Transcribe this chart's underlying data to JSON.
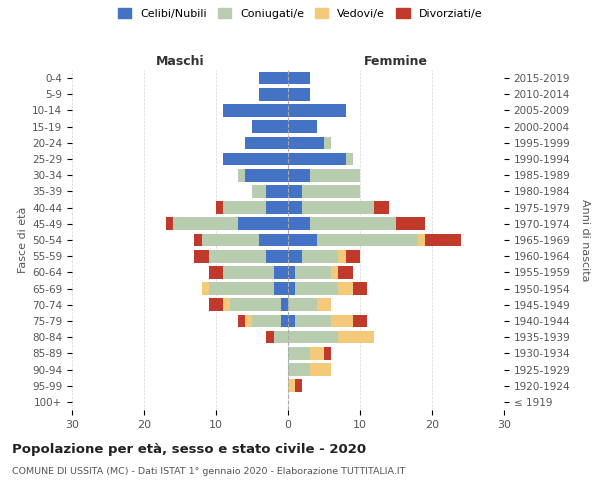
{
  "age_groups": [
    "100+",
    "95-99",
    "90-94",
    "85-89",
    "80-84",
    "75-79",
    "70-74",
    "65-69",
    "60-64",
    "55-59",
    "50-54",
    "45-49",
    "40-44",
    "35-39",
    "30-34",
    "25-29",
    "20-24",
    "15-19",
    "10-14",
    "5-9",
    "0-4"
  ],
  "birth_years": [
    "≤ 1919",
    "1920-1924",
    "1925-1929",
    "1930-1934",
    "1935-1939",
    "1940-1944",
    "1945-1949",
    "1950-1954",
    "1955-1959",
    "1960-1964",
    "1965-1969",
    "1970-1974",
    "1975-1979",
    "1980-1984",
    "1985-1989",
    "1990-1994",
    "1995-1999",
    "2000-2004",
    "2005-2009",
    "2010-2014",
    "2015-2019"
  ],
  "male": {
    "celibi": [
      0,
      0,
      0,
      0,
      0,
      1,
      1,
      2,
      2,
      3,
      4,
      7,
      3,
      3,
      6,
      9,
      6,
      5,
      9,
      4,
      4
    ],
    "coniugati": [
      0,
      0,
      0,
      0,
      2,
      4,
      7,
      9,
      7,
      8,
      8,
      9,
      6,
      2,
      1,
      0,
      0,
      0,
      0,
      0,
      0
    ],
    "vedovi": [
      0,
      0,
      0,
      0,
      0,
      1,
      1,
      1,
      0,
      0,
      0,
      0,
      0,
      0,
      0,
      0,
      0,
      0,
      0,
      0,
      0
    ],
    "divorziati": [
      0,
      0,
      0,
      0,
      1,
      1,
      2,
      0,
      2,
      2,
      1,
      1,
      1,
      0,
      0,
      0,
      0,
      0,
      0,
      0,
      0
    ]
  },
  "female": {
    "nubili": [
      0,
      0,
      0,
      0,
      0,
      1,
      0,
      1,
      1,
      2,
      4,
      3,
      2,
      2,
      3,
      8,
      5,
      4,
      8,
      3,
      3
    ],
    "coniugate": [
      0,
      0,
      3,
      3,
      7,
      5,
      4,
      6,
      5,
      5,
      14,
      12,
      10,
      8,
      7,
      1,
      1,
      0,
      0,
      0,
      0
    ],
    "vedove": [
      0,
      1,
      3,
      2,
      5,
      3,
      2,
      2,
      1,
      1,
      1,
      0,
      0,
      0,
      0,
      0,
      0,
      0,
      0,
      0,
      0
    ],
    "divorziate": [
      0,
      1,
      0,
      1,
      0,
      2,
      0,
      2,
      2,
      2,
      5,
      4,
      2,
      0,
      0,
      0,
      0,
      0,
      0,
      0,
      0
    ]
  },
  "colors": {
    "celibi_nubili": "#4472C4",
    "coniugati": "#B8CCB0",
    "vedovi": "#F5C97A",
    "divorziati": "#C0392B"
  },
  "xlim": [
    -30,
    30
  ],
  "xticks": [
    -30,
    -20,
    -10,
    0,
    10,
    20,
    30
  ],
  "xtick_labels": [
    "30",
    "20",
    "10",
    "0",
    "10",
    "20",
    "30"
  ],
  "title_main": "Popolazione per età, sesso e stato civile - 2020",
  "subtitle": "COMUNE DI USSITA (MC) - Dati ISTAT 1° gennaio 2020 - Elaborazione TUTTITALIA.IT",
  "ylabel_left": "Fasce di età",
  "ylabel_right": "Anni di nascita",
  "label_maschi": "Maschi",
  "label_femmine": "Femmine",
  "legend_labels": [
    "Celibi/Nubili",
    "Coniugati/e",
    "Vedovi/e",
    "Divorziati/e"
  ],
  "background_color": "#ffffff",
  "grid_color": "#cccccc"
}
